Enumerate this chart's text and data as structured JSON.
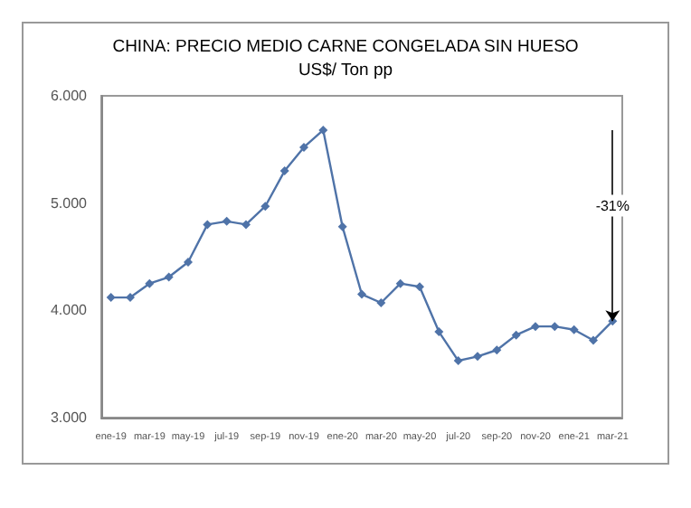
{
  "chart_data": {
    "type": "line",
    "title": "CHINA: PRECIO MEDIO CARNE CONGELADA SIN HUESO",
    "subtitle": "US$/ Ton pp",
    "categories": [
      "ene-19",
      null,
      "mar-19",
      null,
      "may-19",
      null,
      "jul-19",
      null,
      "sep-19",
      null,
      "nov-19",
      null,
      "ene-20",
      null,
      "mar-20",
      null,
      "may-20",
      null,
      "jul-20",
      null,
      "sep-20",
      null,
      "nov-20",
      null,
      "ene-21",
      null,
      "mar-21"
    ],
    "series": [
      {
        "color": "#4f73a8",
        "values": [
          4120,
          4120,
          4250,
          4310,
          4450,
          4800,
          4830,
          4800,
          4970,
          5300,
          5520,
          5680,
          4780,
          4150,
          4070,
          4250,
          4220,
          3800,
          3530,
          3570,
          3630,
          3770,
          3850,
          3850,
          3820,
          3720,
          3900
        ]
      }
    ],
    "ylim": [
      3000,
      6000
    ],
    "yticks": [
      {
        "value": 3000,
        "label": "3.000"
      },
      {
        "value": 4000,
        "label": "4.000"
      },
      {
        "value": 5000,
        "label": "5.000"
      },
      {
        "value": 6000,
        "label": "6.000"
      }
    ],
    "grid": false,
    "marker": "diamond",
    "line_style": "solid",
    "annotations": [
      "-31%"
    ]
  }
}
